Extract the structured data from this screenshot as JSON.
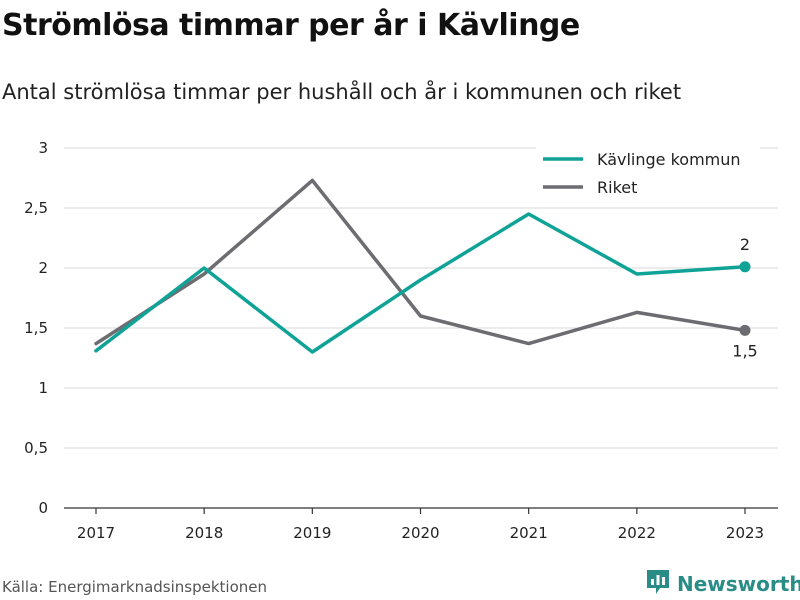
{
  "title": "Strömlösa timmar per år i Kävlinge",
  "subtitle": "Antal strömlösa timmar per hushåll och år i kommunen och riket",
  "source": "Källa: Energimarknadsinspektionen",
  "brand": {
    "name": "Newsworthy",
    "icon": "newsworthy-logo-icon",
    "color": "#2a8c87"
  },
  "chart_data": {
    "type": "line",
    "x": [
      "2017",
      "2018",
      "2019",
      "2020",
      "2021",
      "2022",
      "2023"
    ],
    "ylim": [
      0,
      3
    ],
    "yticks": [
      0,
      0.5,
      1,
      1.5,
      2,
      2.5,
      3
    ],
    "ytick_labels": [
      "0",
      "0,5",
      "1",
      "1,5",
      "2",
      "2,5",
      "3"
    ],
    "grid": true,
    "legend_position": "top-right",
    "series": [
      {
        "name": "Kävlinge kommun",
        "color": "#0fa397",
        "values": [
          1.31,
          2.0,
          1.3,
          1.9,
          2.45,
          1.95,
          2.01
        ],
        "end_label": "2"
      },
      {
        "name": "Riket",
        "color": "#6d6c71",
        "values": [
          1.37,
          1.95,
          2.73,
          1.6,
          1.37,
          1.63,
          1.48
        ],
        "end_label": "1,5"
      }
    ]
  }
}
